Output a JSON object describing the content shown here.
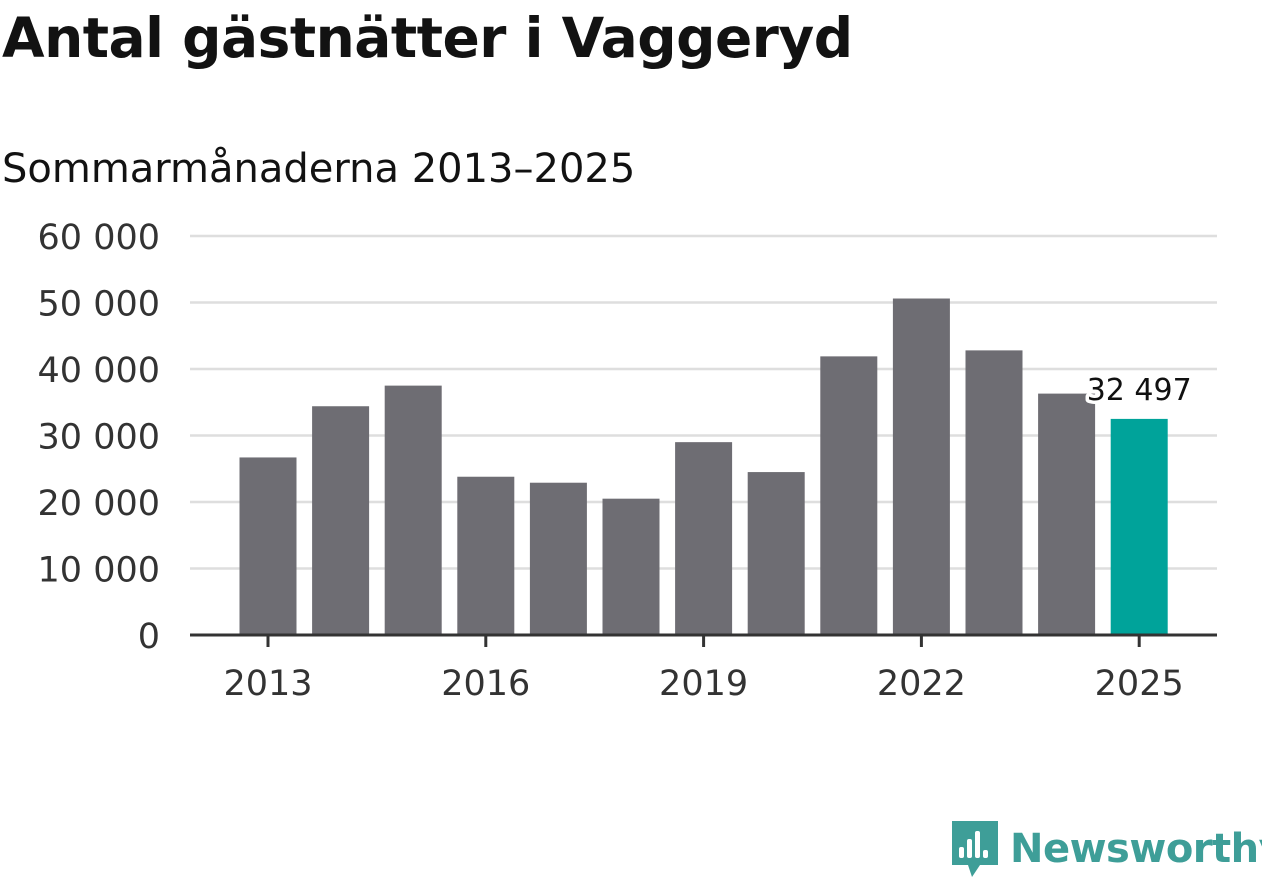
{
  "title": "Antal gästnätter i Vaggeryd",
  "subtitle": "Sommarmånaderna 2013–2025",
  "brand": {
    "name": "Newsworthy",
    "icon": "newsworthy-logo-icon",
    "color": "#3e9e98"
  },
  "chart_data": {
    "type": "bar",
    "title": "Antal gästnätter i Vaggeryd",
    "subtitle": "Sommarmånaderna 2013–2025",
    "categories": [
      "2013",
      "2014",
      "2015",
      "2016",
      "2017",
      "2018",
      "2019",
      "2020",
      "2021",
      "2022",
      "2023",
      "2024",
      "2025"
    ],
    "values": [
      26700,
      34400,
      37500,
      23800,
      22900,
      20500,
      29000,
      24500,
      41900,
      50600,
      42800,
      36300,
      32497
    ],
    "xtick_labels": [
      "2013",
      "2016",
      "2019",
      "2022",
      "2025"
    ],
    "ylim": [
      0,
      60000
    ],
    "yticks": [
      0,
      10000,
      20000,
      30000,
      40000,
      50000,
      60000
    ],
    "ytick_labels": [
      "0",
      "10 000",
      "20 000",
      "30 000",
      "40 000",
      "50 000",
      "60 000"
    ],
    "xlabel": "",
    "ylabel": "",
    "grid": true,
    "highlight": {
      "category": "2025",
      "label": "32 497",
      "color": "#00a39a"
    },
    "bar_color": "#6e6d73"
  }
}
